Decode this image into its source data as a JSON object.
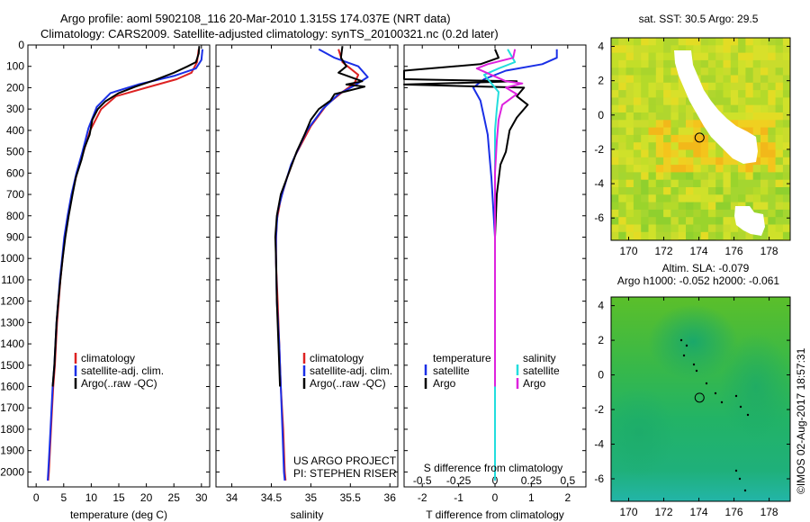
{
  "title_line1": "Argo profile: aoml 5902108_116 20-Mar-2010 1.315S 174.037E (NRT data)",
  "title_line2": "Climatology: CARS2009. Satellite-adjusted climatology: synTS_20100321.nc (0.2d later)",
  "colors": {
    "climatology": "#dd2222",
    "satellite": "#1a2fe6",
    "argo": "#000000",
    "sat_salinity": "#22dddd",
    "argo_salinity": "#dd22dd"
  },
  "watermark": "©IMOS 02-Aug-2017 18:57:31",
  "credit": {
    "line1": "US ARGO PROJECT",
    "line2": "PI: STEPHEN RISER"
  },
  "chart_data": [
    {
      "type": "line",
      "name": "temperature",
      "xlabel": "temperature (deg C)",
      "ylabel": "",
      "xlim": [
        -1.5,
        31.5
      ],
      "ylim": [
        2070,
        0
      ],
      "xticks": [
        0,
        5,
        10,
        15,
        20,
        25,
        30
      ],
      "yticks": [
        0,
        100,
        200,
        300,
        400,
        500,
        600,
        700,
        800,
        900,
        1000,
        1100,
        1200,
        1300,
        1400,
        1500,
        1600,
        1700,
        1800,
        1900,
        2000
      ],
      "legend": [
        "climatology",
        "satellite-adj. clim.",
        "Argo(..raw -QC)"
      ],
      "series": [
        {
          "name": "climatology",
          "color": "#dd2222",
          "points": [
            [
              29.5,
              20
            ],
            [
              29.2,
              80
            ],
            [
              28.2,
              130
            ],
            [
              25.5,
              160
            ],
            [
              20,
              200
            ],
            [
              14.5,
              240
            ],
            [
              11.8,
              300
            ],
            [
              9.8,
              400
            ],
            [
              8.6,
              500
            ],
            [
              7.4,
              600
            ],
            [
              6.5,
              700
            ],
            [
              5.8,
              800
            ],
            [
              5.2,
              900
            ],
            [
              4.8,
              1000
            ],
            [
              4.4,
              1100
            ],
            [
              4.1,
              1200
            ],
            [
              3.8,
              1300
            ],
            [
              3.6,
              1400
            ],
            [
              3.4,
              1500
            ],
            [
              3.1,
              1600
            ],
            [
              2.9,
              1700
            ],
            [
              2.7,
              1800
            ],
            [
              2.5,
              1900
            ],
            [
              2.3,
              2000
            ],
            [
              2.2,
              2040
            ]
          ]
        },
        {
          "name": "satellite-adj. clim.",
          "color": "#1a2fe6",
          "points": [
            [
              30.2,
              20
            ],
            [
              30.0,
              70
            ],
            [
              29.0,
              110
            ],
            [
              25.0,
              145
            ],
            [
              18.5,
              185
            ],
            [
              13.5,
              225
            ],
            [
              11.0,
              290
            ],
            [
              9.5,
              390
            ],
            [
              8.4,
              500
            ],
            [
              7.3,
              600
            ],
            [
              6.4,
              700
            ],
            [
              5.7,
              800
            ],
            [
              5.1,
              900
            ],
            [
              4.7,
              1000
            ],
            [
              4.3,
              1100
            ],
            [
              4.0,
              1200
            ],
            [
              3.7,
              1300
            ],
            [
              3.5,
              1400
            ],
            [
              3.3,
              1500
            ],
            [
              3.0,
              1600
            ],
            [
              2.8,
              1700
            ],
            [
              2.6,
              1800
            ],
            [
              2.4,
              1900
            ],
            [
              2.2,
              2000
            ],
            [
              2.1,
              2040
            ]
          ]
        },
        {
          "name": "Argo(..raw -QC)",
          "color": "#000000",
          "points": [
            [
              29.6,
              5
            ],
            [
              29.5,
              40
            ],
            [
              29.0,
              80
            ],
            [
              27.5,
              100
            ],
            [
              25.0,
              130
            ],
            [
              21.5,
              165
            ],
            [
              18.0,
              195
            ],
            [
              15.0,
              225
            ],
            [
              12.5,
              265
            ],
            [
              11.2,
              300
            ],
            [
              10.2,
              350
            ],
            [
              9.7,
              420
            ],
            [
              8.8,
              480
            ],
            [
              8.2,
              540
            ],
            [
              7.2,
              620
            ],
            [
              6.6,
              700
            ],
            [
              5.9,
              800
            ],
            [
              5.3,
              900
            ],
            [
              4.8,
              1000
            ],
            [
              4.4,
              1100
            ],
            [
              4.0,
              1200
            ],
            [
              3.7,
              1300
            ],
            [
              3.5,
              1400
            ],
            [
              3.3,
              1500
            ],
            [
              3.0,
              1600
            ]
          ]
        }
      ]
    },
    {
      "type": "line",
      "name": "salinity",
      "xlabel": "salinity",
      "ylabel": "",
      "xlim": [
        33.8,
        36.1
      ],
      "ylim": [
        2070,
        0
      ],
      "xticks": [
        34,
        34.5,
        35,
        35.5,
        36
      ],
      "legend": [
        "climatology",
        "satellite-adj. clim.",
        "Argo(..raw -QC)"
      ],
      "series": [
        {
          "name": "climatology",
          "color": "#dd2222",
          "points": [
            [
              35.35,
              20
            ],
            [
              35.4,
              80
            ],
            [
              35.6,
              140
            ],
            [
              35.55,
              180
            ],
            [
              35.4,
              220
            ],
            [
              35.2,
              280
            ],
            [
              35.0,
              380
            ],
            [
              34.9,
              450
            ],
            [
              34.8,
              520
            ],
            [
              34.7,
              620
            ],
            [
              34.62,
              720
            ],
            [
              34.57,
              820
            ],
            [
              34.56,
              920
            ],
            [
              34.56,
              1020
            ],
            [
              34.58,
              1200
            ],
            [
              34.6,
              1400
            ],
            [
              34.62,
              1600
            ],
            [
              34.65,
              1800
            ],
            [
              34.67,
              2000
            ],
            [
              34.68,
              2040
            ]
          ]
        },
        {
          "name": "satellite-adj. clim.",
          "color": "#1a2fe6",
          "points": [
            [
              35.1,
              20
            ],
            [
              35.3,
              60
            ],
            [
              35.6,
              100
            ],
            [
              35.72,
              150
            ],
            [
              35.55,
              190
            ],
            [
              35.35,
              230
            ],
            [
              35.15,
              300
            ],
            [
              34.95,
              400
            ],
            [
              34.85,
              480
            ],
            [
              34.75,
              560
            ],
            [
              34.65,
              680
            ],
            [
              34.58,
              780
            ],
            [
              34.56,
              900
            ],
            [
              34.56,
              1000
            ],
            [
              34.57,
              1200
            ],
            [
              34.6,
              1400
            ],
            [
              34.62,
              1600
            ],
            [
              34.64,
              1800
            ],
            [
              34.66,
              2000
            ],
            [
              34.67,
              2040
            ]
          ]
        },
        {
          "name": "Argo(..raw -QC)",
          "color": "#000000",
          "points": [
            [
              35.4,
              5
            ],
            [
              35.38,
              60
            ],
            [
              35.45,
              100
            ],
            [
              35.35,
              130
            ],
            [
              35.5,
              150
            ],
            [
              35.65,
              170
            ],
            [
              35.45,
              185
            ],
            [
              35.68,
              195
            ],
            [
              35.3,
              230
            ],
            [
              35.25,
              260
            ],
            [
              35.1,
              300
            ],
            [
              35.0,
              350
            ],
            [
              34.92,
              420
            ],
            [
              34.82,
              500
            ],
            [
              34.72,
              600
            ],
            [
              34.62,
              700
            ],
            [
              34.57,
              800
            ],
            [
              34.55,
              900
            ],
            [
              34.56,
              1000
            ],
            [
              34.57,
              1200
            ],
            [
              34.59,
              1400
            ],
            [
              34.61,
              1600
            ]
          ]
        }
      ]
    },
    {
      "type": "line",
      "name": "differences",
      "xlabel": "T difference from climatology",
      "xlabel_top": "S difference from climatology",
      "xlim": [
        -2.5,
        2.5
      ],
      "ylim": [
        2070,
        0
      ],
      "xticks": [
        -2,
        -1,
        0,
        1,
        2
      ],
      "xticks_s": [
        -0.5,
        -0.25,
        0,
        0.25,
        0.5
      ],
      "legend": {
        "left_header": "temperature",
        "right_header": "salinity",
        "left": [
          "satellite",
          "Argo"
        ],
        "right": [
          "satellite",
          "Argo"
        ]
      },
      "series": [
        {
          "name": "temperature satellite",
          "color": "#1a2fe6",
          "points": [
            [
              1.7,
              20
            ],
            [
              1.7,
              60
            ],
            [
              1.3,
              90
            ],
            [
              0.3,
              120
            ],
            [
              -0.3,
              160
            ],
            [
              -0.6,
              200
            ],
            [
              -0.4,
              260
            ],
            [
              -0.3,
              340
            ],
            [
              -0.2,
              420
            ],
            [
              -0.15,
              520
            ],
            [
              -0.1,
              620
            ],
            [
              -0.05,
              760
            ],
            [
              0,
              900
            ],
            [
              0,
              1100
            ],
            [
              0,
              1500
            ],
            [
              0,
              2040
            ]
          ]
        },
        {
          "name": "temperature Argo",
          "color": "#000000",
          "points": [
            [
              0,
              20
            ],
            [
              0.1,
              60
            ],
            [
              -0.4,
              90
            ],
            [
              -2.5,
              120
            ],
            [
              -2.5,
              160
            ],
            [
              0.6,
              170
            ],
            [
              -2.5,
              185
            ],
            [
              0.8,
              200
            ],
            [
              0.6,
              240
            ],
            [
              0.9,
              280
            ],
            [
              0.6,
              340
            ],
            [
              0.4,
              400
            ],
            [
              0.3,
              500
            ],
            [
              0.15,
              560
            ],
            [
              0.05,
              700
            ],
            [
              0,
              900
            ],
            [
              0,
              1200
            ],
            [
              0,
              1600
            ]
          ]
        },
        {
          "name": "salinity satellite",
          "color": "#22dddd",
          "points": [
            [
              0.35,
              20
            ],
            [
              0.55,
              80
            ],
            [
              0.1,
              110
            ],
            [
              -0.3,
              140
            ],
            [
              -0.1,
              180
            ],
            [
              0.1,
              220
            ],
            [
              0.05,
              300
            ],
            [
              0,
              400
            ],
            [
              0,
              600
            ],
            [
              0,
              900
            ],
            [
              0,
              1300
            ],
            [
              0,
              2040
            ]
          ]
        },
        {
          "name": "salinity Argo",
          "color": "#dd22dd",
          "points": [
            [
              0.55,
              20
            ],
            [
              0.5,
              60
            ],
            [
              -0.2,
              90
            ],
            [
              -0.5,
              110
            ],
            [
              0.3,
              170
            ],
            [
              0.75,
              180
            ],
            [
              0.3,
              200
            ],
            [
              0.6,
              230
            ],
            [
              0.2,
              280
            ],
            [
              0.1,
              350
            ],
            [
              0.05,
              450
            ],
            [
              0,
              600
            ],
            [
              0,
              900
            ],
            [
              0,
              1300
            ],
            [
              0,
              1600
            ]
          ]
        }
      ]
    },
    {
      "type": "heatmap",
      "name": "sst_map",
      "title": "sat. SST: 30.5 Argo: 29.5",
      "xlim": [
        169,
        179.2
      ],
      "ylim": [
        -7.3,
        4.5
      ],
      "xticks": [
        170,
        172,
        174,
        176,
        178
      ],
      "yticks": [
        4,
        2,
        0,
        -2,
        -4,
        -6
      ],
      "float_position": [
        174.037,
        -1.315
      ]
    },
    {
      "type": "heatmap",
      "name": "sla_map",
      "title_line1": "Altim. SLA: -0.079",
      "title_line2": "Argo h1000: -0.052 h2000: -0.061",
      "xlim": [
        169,
        179.2
      ],
      "ylim": [
        -7.3,
        4.5
      ],
      "xticks": [
        170,
        172,
        174,
        176,
        178
      ],
      "yticks": [
        4,
        2,
        0,
        -2,
        -4,
        -6
      ],
      "float_position": [
        174.037,
        -1.315
      ]
    }
  ]
}
